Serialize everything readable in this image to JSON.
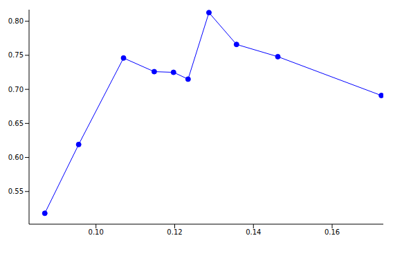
{
  "chart_data": {
    "type": "line",
    "x": [
      0.087,
      0.0956,
      0.107,
      0.1148,
      0.1197,
      0.1234,
      0.1287,
      0.1357,
      0.1462,
      0.1725
    ],
    "values": [
      0.518,
      0.619,
      0.746,
      0.726,
      0.725,
      0.715,
      0.8127,
      0.766,
      0.748,
      0.691
    ],
    "color": "#0000ff",
    "marker": "circle",
    "line_style": "solid",
    "xlim": [
      0.083,
      0.173
    ],
    "xticks": [
      {
        "value": 0.1,
        "label": "0.10"
      },
      {
        "value": 0.12,
        "label": "0.12"
      },
      {
        "value": 0.14,
        "label": "0.14"
      },
      {
        "value": 0.16,
        "label": "0.16"
      }
    ],
    "ylim": [
      0.502,
      0.817
    ],
    "yticks": [
      0.55,
      {
        "value": 0.6,
        "label": "0.60"
      },
      0.65,
      {
        "value": 0.7,
        "label": "0.70"
      },
      0.75,
      {
        "value": 0.8,
        "label": "0.80"
      }
    ],
    "grid": false
  }
}
